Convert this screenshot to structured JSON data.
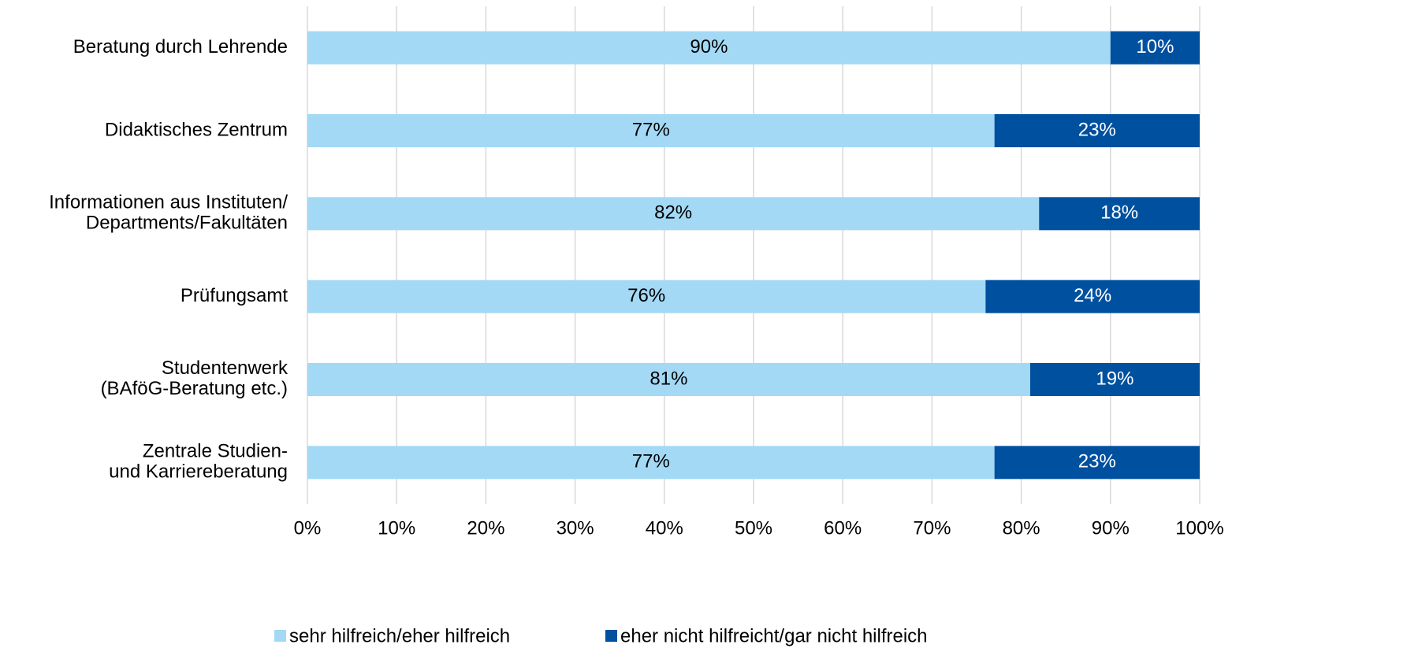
{
  "chart_data": {
    "type": "stacked_bar_horizontal",
    "categories": [
      "Beratung durch Lehrende",
      "Didaktisches Zentrum",
      "Informationen aus Instituten/\nDepartments/Fakultäten",
      "Prüfungsamt",
      "Studentenwerk\n(BAföG-Beratung etc.)",
      "Zentrale Studien-\nund Karriereberatung"
    ],
    "series": [
      {
        "name": "sehr hilfreich/eher hilfreich",
        "color": "#a3d9f5",
        "values": [
          90,
          77,
          82,
          76,
          81,
          77
        ],
        "value_labels": [
          "90%",
          "77%",
          "82%",
          "76%",
          "81%",
          "77%"
        ]
      },
      {
        "name": "eher nicht hilfreicht/gar nicht hilfreich",
        "color": "#0050a0",
        "values": [
          10,
          23,
          18,
          24,
          19,
          23
        ],
        "value_labels": [
          "10%",
          "23%",
          "18%",
          "24%",
          "19%",
          "23%"
        ]
      }
    ],
    "xlim": [
      0,
      100
    ],
    "xticks": [
      {
        "value": 0,
        "label": "0%"
      },
      {
        "value": 10,
        "label": "10%"
      },
      {
        "value": 20,
        "label": "20%"
      },
      {
        "value": 30,
        "label": "30%"
      },
      {
        "value": 40,
        "label": "40%"
      },
      {
        "value": 50,
        "label": "50%"
      },
      {
        "value": 60,
        "label": "60%"
      },
      {
        "value": 70,
        "label": "70%"
      },
      {
        "value": 80,
        "label": "80%"
      },
      {
        "value": 90,
        "label": "90%"
      },
      {
        "value": 100,
        "label": "100%"
      }
    ],
    "grid": true,
    "legend": "bottom"
  }
}
